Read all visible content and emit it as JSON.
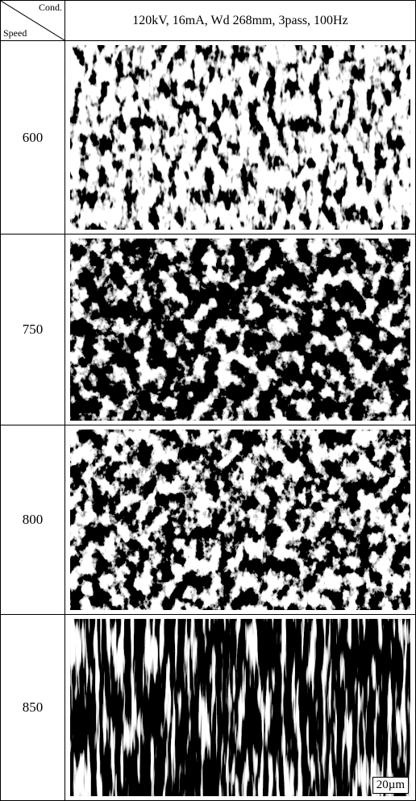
{
  "header": {
    "corner_top": "Cond.",
    "corner_bottom": "Speed",
    "title": "120kV, 16mA, Wd 268mm, 3pass, 100Hz"
  },
  "rows": [
    {
      "label": 600
    },
    {
      "label": 750
    },
    {
      "label": 800
    },
    {
      "label": 850
    }
  ],
  "scale_bar": "20µm"
}
